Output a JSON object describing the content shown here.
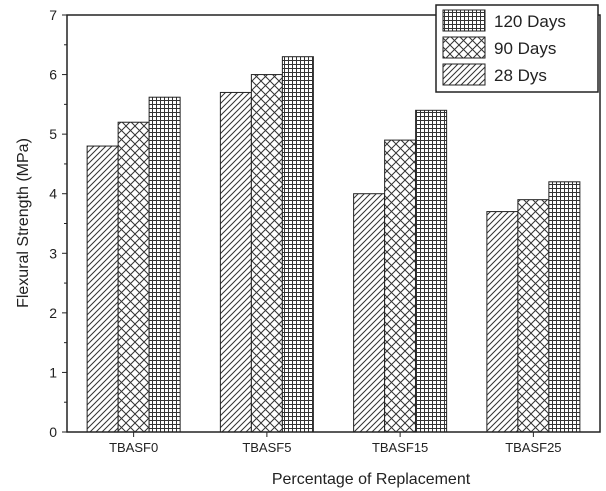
{
  "chart_data": {
    "type": "bar",
    "title": "",
    "xlabel": "Percentage of Replacement",
    "ylabel": "Flexural Strength (MPa)",
    "ylim": [
      0,
      7
    ],
    "yticks": [
      "0",
      "1",
      "2",
      "3",
      "4",
      "5",
      "6",
      "7"
    ],
    "categories": [
      "TBASF0",
      "TBASF5",
      "TBASF15",
      "TBASF25"
    ],
    "series": [
      {
        "name": "28 Dys",
        "pattern": "diagonal-hatch",
        "values": [
          4.8,
          5.7,
          4.0,
          3.7
        ]
      },
      {
        "name": "90 Days",
        "pattern": "cross-hatch",
        "values": [
          5.2,
          6.0,
          4.9,
          3.9
        ]
      },
      {
        "name": "120 Days",
        "pattern": "grid",
        "values": [
          5.62,
          6.3,
          5.4,
          4.2
        ]
      }
    ],
    "legend": {
      "position": "top-right",
      "order": [
        "120 Days",
        "90 Days",
        "28 Dys"
      ]
    },
    "grid": false,
    "colors": {
      "stroke": "#222222",
      "background": "#ffffff"
    }
  }
}
